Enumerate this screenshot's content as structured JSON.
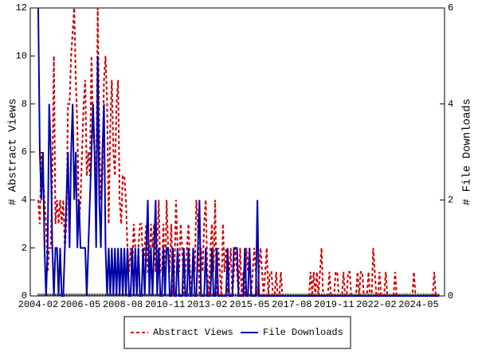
{
  "chart_data": {
    "type": "line",
    "y_label": "# Abstract Views",
    "y2_label": "# File Downloads",
    "categories": [
      "2004-02",
      null,
      null,
      null,
      null,
      null,
      null,
      null,
      null,
      null,
      null,
      null,
      null,
      null,
      null,
      null,
      null,
      null,
      null,
      null,
      null,
      null,
      null,
      null,
      null,
      null,
      null,
      "2006-05",
      null,
      null,
      null,
      null,
      null,
      null,
      null,
      null,
      null,
      null,
      null,
      null,
      null,
      null,
      null,
      null,
      null,
      null,
      null,
      null,
      null,
      null,
      null,
      null,
      null,
      null,
      "2008-08",
      null,
      null,
      null,
      null,
      null,
      null,
      null,
      null,
      null,
      null,
      null,
      null,
      null,
      null,
      null,
      null,
      null,
      null,
      null,
      null,
      null,
      null,
      null,
      null,
      null,
      null,
      "2010-11",
      null,
      null,
      null,
      null,
      null,
      null,
      null,
      null,
      null,
      null,
      null,
      null,
      null,
      null,
      null,
      null,
      null,
      null,
      null,
      null,
      null,
      null,
      null,
      null,
      null,
      null,
      "2013-02",
      null,
      null,
      null,
      null,
      null,
      null,
      null,
      null,
      null,
      null,
      null,
      null,
      null,
      null,
      null,
      null,
      null,
      null,
      null,
      null,
      null,
      null,
      null,
      null,
      null,
      null,
      "2015-05",
      null,
      null,
      null,
      null,
      null,
      null,
      null,
      null,
      null,
      null,
      null,
      null,
      null,
      null,
      null,
      null,
      null,
      null,
      null,
      null,
      null,
      null,
      null,
      null,
      null,
      null,
      "2017-08",
      null,
      null,
      null,
      null,
      null,
      null,
      null,
      null,
      null,
      null,
      null,
      null,
      null,
      null,
      null,
      null,
      null,
      null,
      null,
      null,
      null,
      null,
      null,
      null,
      null,
      null,
      "2019-11",
      null,
      null,
      null,
      null,
      null,
      null,
      null,
      null,
      null,
      null,
      null,
      null,
      null,
      null,
      null,
      null,
      null,
      null,
      null,
      null,
      null,
      null,
      null,
      null,
      null,
      null,
      "2022-02",
      null,
      null,
      null,
      null,
      null,
      null,
      null,
      null,
      null,
      null,
      null,
      null,
      null,
      null,
      null,
      null,
      null,
      null,
      null,
      null,
      null,
      null,
      null,
      null,
      null,
      null,
      "2024-05",
      null,
      null,
      null,
      null,
      null,
      null,
      null,
      null,
      null,
      null,
      null,
      null,
      null
    ],
    "series": [
      {
        "name": "Abstract Views",
        "color": "#cc0000",
        "dashed": true,
        "values": [
          4,
          3,
          6,
          5,
          4,
          3,
          1,
          2,
          2,
          5,
          10,
          3,
          4,
          3,
          4,
          3,
          4,
          2,
          3,
          8,
          8,
          10,
          11,
          12,
          9,
          7,
          3,
          4,
          6,
          8,
          9,
          5,
          6,
          5,
          10,
          7,
          6,
          4,
          12,
          7,
          4,
          5,
          9,
          10,
          8,
          3,
          7,
          9,
          6,
          5,
          8,
          9,
          4,
          3,
          5,
          5,
          4,
          2,
          1,
          2,
          1,
          3,
          2,
          0,
          2,
          3,
          3,
          1,
          2,
          3,
          1,
          1,
          3,
          2,
          3,
          1,
          2,
          4,
          1,
          1,
          3,
          0,
          4,
          2,
          1,
          3,
          0,
          1,
          4,
          2,
          1,
          3,
          2,
          0,
          1,
          2,
          3,
          1,
          0,
          2,
          1,
          4,
          3,
          0,
          2,
          1,
          3,
          4,
          1,
          0,
          2,
          3,
          1,
          4,
          0,
          2,
          1,
          0,
          3,
          1,
          2,
          0,
          1,
          2,
          0,
          1,
          2,
          1,
          0,
          2,
          0,
          1,
          0,
          2,
          1,
          2,
          0,
          1,
          2,
          1,
          0,
          1,
          2,
          1,
          0,
          1,
          2,
          0,
          1,
          1,
          0,
          0,
          1,
          0,
          0,
          1,
          0,
          0,
          0,
          0,
          0,
          0,
          0,
          0,
          0,
          0,
          0,
          0,
          0,
          0,
          0,
          0,
          0,
          0,
          1,
          0,
          1,
          0,
          1,
          0,
          1,
          2,
          0,
          0,
          0,
          0,
          1,
          0,
          0,
          0,
          1,
          1,
          0,
          0,
          0,
          1,
          0,
          0,
          1,
          1,
          0,
          0,
          0,
          0,
          1,
          0,
          1,
          1,
          0,
          0,
          0,
          1,
          0,
          0,
          2,
          1,
          0,
          0,
          1,
          0,
          0,
          0,
          1,
          0,
          0,
          0,
          0,
          0,
          1,
          0,
          0,
          0,
          0,
          0,
          0,
          0,
          0,
          0,
          0,
          0,
          1,
          0,
          0,
          0,
          0,
          0,
          0,
          0,
          0,
          0,
          0,
          0,
          0,
          1,
          0,
          0,
          0
        ]
      },
      {
        "name": "File Downloads",
        "color": "#0000aa",
        "dashed": false,
        "axis": "y2",
        "values": [
          6,
          3,
          2,
          3,
          1,
          0,
          1,
          4,
          3,
          1,
          0,
          1,
          1,
          0,
          1,
          0,
          0,
          1,
          2,
          3,
          1,
          3,
          4,
          2,
          3,
          1,
          2,
          1,
          1,
          1,
          1,
          0,
          1,
          2,
          3,
          4,
          3,
          1,
          5,
          2,
          1,
          3,
          4,
          1,
          0,
          1,
          0,
          1,
          0,
          1,
          0,
          1,
          0,
          1,
          0,
          1,
          0,
          1,
          0,
          0,
          1,
          0,
          1,
          0,
          1,
          0,
          0,
          1,
          0,
          1,
          2,
          0,
          1,
          0,
          1,
          2,
          0,
          1,
          0,
          0,
          1,
          0,
          1,
          1,
          0,
          0,
          1,
          0,
          0,
          1,
          0,
          0,
          0,
          1,
          0,
          0,
          1,
          0,
          0,
          1,
          0,
          0,
          1,
          2,
          0,
          0,
          0,
          1,
          0,
          0,
          0,
          1,
          0,
          0,
          1,
          0,
          0,
          0,
          0,
          0,
          0,
          1,
          0,
          0,
          0,
          1,
          1,
          1,
          0,
          0,
          0,
          0,
          1,
          0,
          0,
          1,
          0,
          0,
          0,
          0,
          2,
          0,
          0,
          0,
          0,
          0,
          0,
          0,
          0,
          0,
          0,
          0,
          0,
          0,
          0,
          0,
          0,
          0,
          0,
          0,
          0,
          0,
          0,
          0,
          0,
          0,
          0,
          0,
          0,
          0,
          0,
          0,
          0,
          0,
          0,
          0,
          0,
          0,
          0,
          0,
          0,
          0,
          0,
          0,
          0,
          0,
          0,
          0,
          0,
          0,
          0,
          0,
          0,
          0,
          0,
          0,
          0,
          0,
          0,
          0,
          0,
          0,
          0,
          0,
          0,
          0,
          0,
          0,
          0,
          0,
          0,
          0,
          0,
          0,
          0,
          0,
          0,
          0,
          0,
          0,
          0,
          0,
          0,
          0,
          0,
          0,
          0,
          0,
          0,
          0,
          0,
          0,
          0,
          0,
          0,
          0,
          0,
          0,
          0,
          0,
          0,
          0,
          0,
          0,
          0,
          0,
          0,
          0,
          0,
          0,
          0,
          0,
          0,
          0,
          0,
          0,
          0
        ]
      }
    ],
    "ylim": [
      0,
      12
    ],
    "yticks": [
      0,
      2,
      4,
      6,
      8,
      10,
      12
    ],
    "y2lim": [
      0,
      6
    ],
    "y2ticks": [
      0,
      2,
      4,
      6
    ],
    "legend": "bottom"
  }
}
